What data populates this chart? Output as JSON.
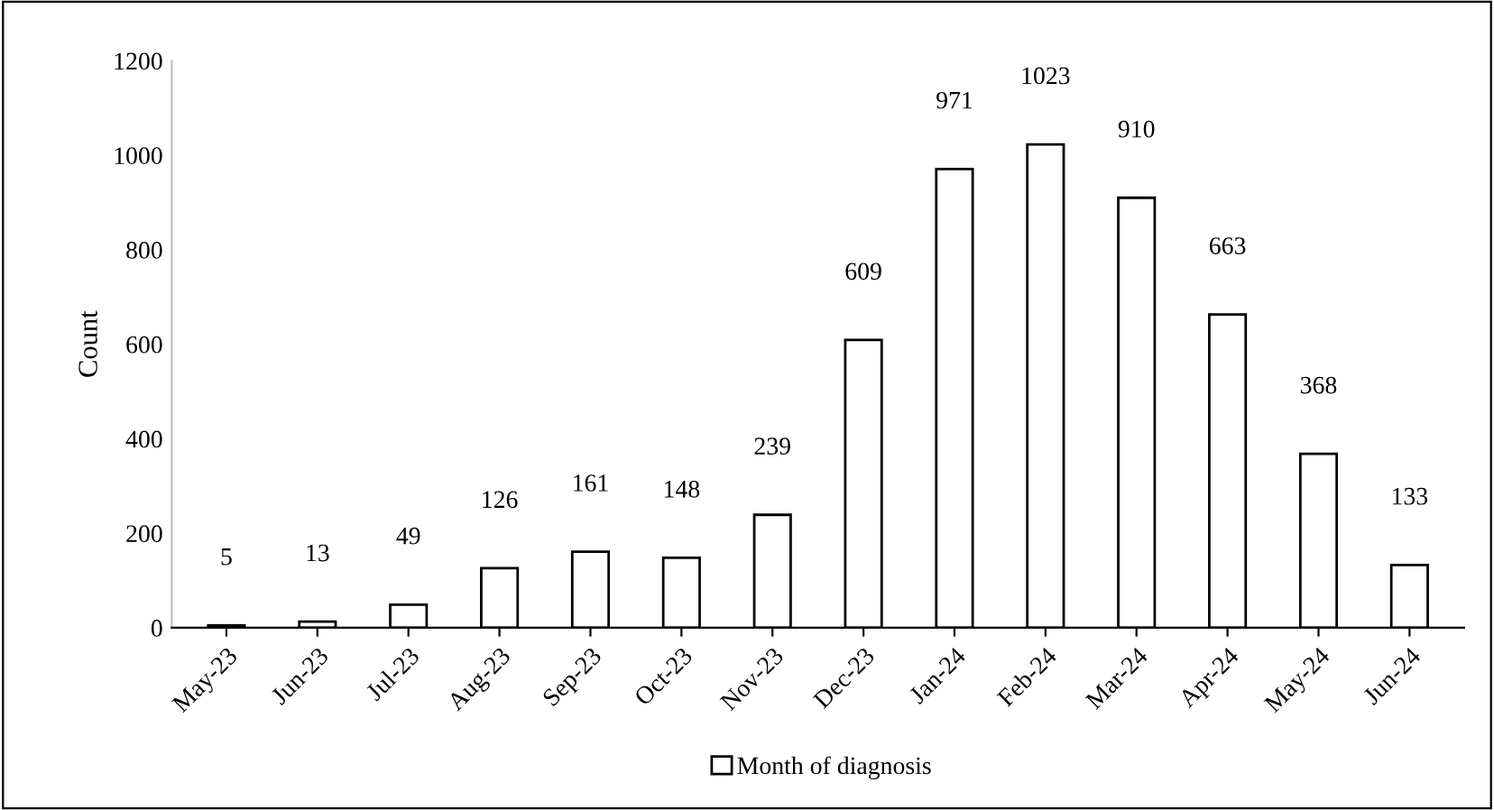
{
  "chart_data": {
    "type": "bar",
    "ylabel": "Count",
    "categories": [
      "May-23",
      "Jun-23",
      "Jul-23",
      "Aug-23",
      "Sep-23",
      "Oct-23",
      "Nov-23",
      "Dec-23",
      "Jan-24",
      "Feb-24",
      "Mar-24",
      "Apr-24",
      "May-24",
      "Jun-24"
    ],
    "series": [
      {
        "name": "Month of diagnosis",
        "color": "#ffffff",
        "values": [
          5,
          13,
          49,
          126,
          161,
          148,
          239,
          609,
          971,
          1023,
          910,
          663,
          368,
          133
        ]
      }
    ],
    "ylim": [
      0,
      1200
    ],
    "yticks": [
      0,
      200,
      400,
      600,
      800,
      1000,
      1200
    ],
    "grid": false,
    "legend": "bottom",
    "data_labels": true
  }
}
